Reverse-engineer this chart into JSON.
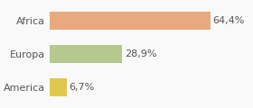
{
  "categories": [
    "Africa",
    "Europa",
    "America"
  ],
  "values": [
    64.4,
    28.9,
    6.7
  ],
  "labels": [
    "64,4%",
    "28,9%",
    "6,7%"
  ],
  "bar_colors": [
    "#e8a97e",
    "#b5c98e",
    "#e0c84e"
  ],
  "background_color": "#f9f9f9",
  "xlim": [
    0,
    80
  ],
  "label_fontsize": 8,
  "tick_fontsize": 8
}
